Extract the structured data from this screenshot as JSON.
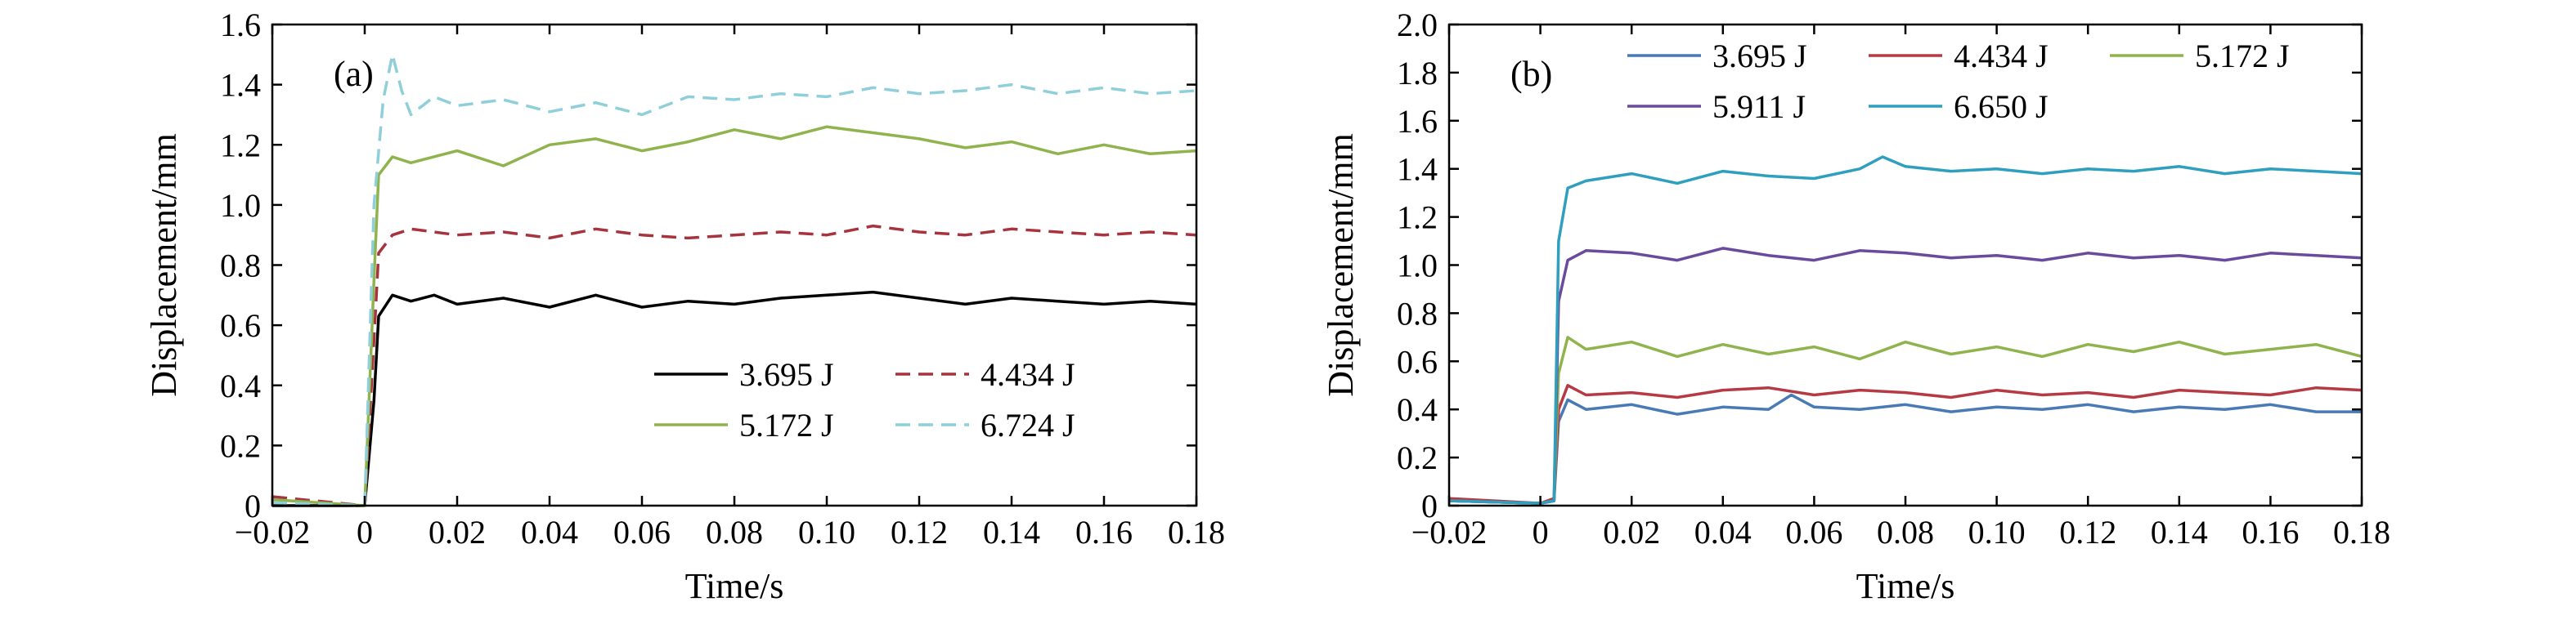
{
  "chart_data": [
    {
      "type": "line",
      "panel_label": "(a)",
      "xlabel": "Time/s",
      "ylabel": "Displacement/mm",
      "xlim": [
        -0.02,
        0.18
      ],
      "ylim": [
        0,
        1.6
      ],
      "xticks": [
        -0.02,
        0,
        0.02,
        0.04,
        0.06,
        0.08,
        0.1,
        0.12,
        0.14,
        0.16,
        0.18
      ],
      "xtick_labels": [
        "−0.02",
        "0",
        "0.02",
        "0.04",
        "0.06",
        "0.08",
        "0.10",
        "0.12",
        "0.14",
        "0.16",
        "0.18"
      ],
      "yticks": [
        0,
        0.2,
        0.4,
        0.6,
        0.8,
        1.0,
        1.2,
        1.4,
        1.6
      ],
      "ytick_labels": [
        "0",
        "0.2",
        "0.4",
        "0.6",
        "0.8",
        "1.0",
        "1.2",
        "1.4",
        "1.6"
      ],
      "grid": false,
      "legend_position": "bottom-right",
      "legend_columns": 2,
      "series": [
        {
          "name": "3.695 J",
          "color": "#000000",
          "dash": "solid",
          "x": [
            -0.02,
            0.0,
            0.002,
            0.003,
            0.006,
            0.01,
            0.015,
            0.02,
            0.03,
            0.04,
            0.05,
            0.06,
            0.07,
            0.08,
            0.09,
            0.1,
            0.11,
            0.12,
            0.13,
            0.14,
            0.15,
            0.16,
            0.17,
            0.18
          ],
          "y": [
            0.0,
            0.0,
            0.35,
            0.63,
            0.7,
            0.68,
            0.7,
            0.67,
            0.69,
            0.66,
            0.7,
            0.66,
            0.68,
            0.67,
            0.69,
            0.7,
            0.71,
            0.69,
            0.67,
            0.69,
            0.68,
            0.67,
            0.68,
            0.67
          ]
        },
        {
          "name": "4.434 J",
          "color": "#a6333d",
          "dash": "dashed",
          "x": [
            -0.02,
            0.0,
            0.002,
            0.003,
            0.006,
            0.01,
            0.02,
            0.03,
            0.04,
            0.05,
            0.06,
            0.07,
            0.08,
            0.09,
            0.1,
            0.11,
            0.12,
            0.13,
            0.14,
            0.15,
            0.16,
            0.17,
            0.18
          ],
          "y": [
            0.03,
            0.0,
            0.55,
            0.84,
            0.9,
            0.92,
            0.9,
            0.91,
            0.89,
            0.92,
            0.9,
            0.89,
            0.9,
            0.91,
            0.9,
            0.93,
            0.91,
            0.9,
            0.92,
            0.91,
            0.9,
            0.91,
            0.9
          ]
        },
        {
          "name": "5.172 J",
          "color": "#8fb34d",
          "dash": "solid",
          "x": [
            -0.02,
            0.0,
            0.002,
            0.003,
            0.006,
            0.01,
            0.02,
            0.03,
            0.04,
            0.05,
            0.06,
            0.07,
            0.08,
            0.09,
            0.1,
            0.11,
            0.12,
            0.13,
            0.14,
            0.15,
            0.16,
            0.17,
            0.18
          ],
          "y": [
            0.02,
            0.0,
            0.75,
            1.1,
            1.16,
            1.14,
            1.18,
            1.13,
            1.2,
            1.22,
            1.18,
            1.21,
            1.25,
            1.22,
            1.26,
            1.24,
            1.22,
            1.19,
            1.21,
            1.17,
            1.2,
            1.17,
            1.18
          ]
        },
        {
          "name": "6.724 J",
          "color": "#8fcfd9",
          "dash": "dashed",
          "x": [
            -0.02,
            0.0,
            0.002,
            0.004,
            0.006,
            0.008,
            0.01,
            0.015,
            0.02,
            0.03,
            0.04,
            0.05,
            0.06,
            0.07,
            0.08,
            0.09,
            0.1,
            0.11,
            0.12,
            0.13,
            0.14,
            0.15,
            0.16,
            0.17,
            0.18
          ],
          "y": [
            0.01,
            0.0,
            1.0,
            1.35,
            1.5,
            1.38,
            1.3,
            1.36,
            1.33,
            1.35,
            1.31,
            1.34,
            1.3,
            1.36,
            1.35,
            1.37,
            1.36,
            1.39,
            1.37,
            1.38,
            1.4,
            1.37,
            1.39,
            1.37,
            1.38
          ]
        }
      ]
    },
    {
      "type": "line",
      "panel_label": "(b)",
      "xlabel": "Time/s",
      "ylabel": "Displacement/mm",
      "xlim": [
        -0.02,
        0.18
      ],
      "ylim": [
        0,
        2.0
      ],
      "xticks": [
        -0.02,
        0,
        0.02,
        0.04,
        0.06,
        0.08,
        0.1,
        0.12,
        0.14,
        0.16,
        0.18
      ],
      "xtick_labels": [
        "−0.02",
        "0",
        "0.02",
        "0.04",
        "0.06",
        "0.08",
        "0.10",
        "0.12",
        "0.14",
        "0.16",
        "0.18"
      ],
      "yticks": [
        0,
        0.2,
        0.4,
        0.6,
        0.8,
        1.0,
        1.2,
        1.4,
        1.6,
        1.8,
        2.0
      ],
      "ytick_labels": [
        "0",
        "0.2",
        "0.4",
        "0.6",
        "0.8",
        "1.0",
        "1.2",
        "1.4",
        "1.6",
        "1.8",
        "2.0"
      ],
      "grid": false,
      "legend_position": "top",
      "legend_columns": 3,
      "series": [
        {
          "name": "3.695 J",
          "color": "#4a7ab5",
          "dash": "solid",
          "x": [
            -0.02,
            0.0,
            0.003,
            0.004,
            0.006,
            0.01,
            0.02,
            0.03,
            0.04,
            0.05,
            0.055,
            0.06,
            0.07,
            0.08,
            0.09,
            0.1,
            0.11,
            0.12,
            0.13,
            0.14,
            0.15,
            0.16,
            0.17,
            0.18
          ],
          "y": [
            0.02,
            0.01,
            0.02,
            0.35,
            0.44,
            0.4,
            0.42,
            0.38,
            0.41,
            0.4,
            0.46,
            0.41,
            0.4,
            0.42,
            0.39,
            0.41,
            0.4,
            0.42,
            0.39,
            0.41,
            0.4,
            0.42,
            0.39,
            0.39
          ]
        },
        {
          "name": "4.434 J",
          "color": "#b53a44",
          "dash": "solid",
          "x": [
            -0.02,
            0.0,
            0.003,
            0.004,
            0.006,
            0.01,
            0.02,
            0.03,
            0.04,
            0.05,
            0.06,
            0.07,
            0.08,
            0.09,
            0.1,
            0.11,
            0.12,
            0.13,
            0.14,
            0.15,
            0.16,
            0.17,
            0.18
          ],
          "y": [
            0.03,
            0.01,
            0.03,
            0.4,
            0.5,
            0.46,
            0.47,
            0.45,
            0.48,
            0.49,
            0.46,
            0.48,
            0.47,
            0.45,
            0.48,
            0.46,
            0.47,
            0.45,
            0.48,
            0.47,
            0.46,
            0.49,
            0.48
          ]
        },
        {
          "name": "5.172 J",
          "color": "#8fb34d",
          "dash": "solid",
          "x": [
            -0.02,
            0.0,
            0.003,
            0.004,
            0.006,
            0.01,
            0.02,
            0.03,
            0.04,
            0.05,
            0.06,
            0.07,
            0.08,
            0.09,
            0.1,
            0.11,
            0.12,
            0.13,
            0.14,
            0.15,
            0.16,
            0.17,
            0.18
          ],
          "y": [
            0.02,
            0.01,
            0.02,
            0.55,
            0.7,
            0.65,
            0.68,
            0.62,
            0.67,
            0.63,
            0.66,
            0.61,
            0.68,
            0.63,
            0.66,
            0.62,
            0.67,
            0.64,
            0.68,
            0.63,
            0.65,
            0.67,
            0.62
          ]
        },
        {
          "name": "5.911 J",
          "color": "#6a4a9c",
          "dash": "solid",
          "x": [
            -0.02,
            0.0,
            0.003,
            0.004,
            0.006,
            0.01,
            0.02,
            0.03,
            0.04,
            0.05,
            0.06,
            0.07,
            0.08,
            0.09,
            0.1,
            0.11,
            0.12,
            0.13,
            0.14,
            0.15,
            0.16,
            0.17,
            0.18
          ],
          "y": [
            0.02,
            0.01,
            0.02,
            0.85,
            1.02,
            1.06,
            1.05,
            1.02,
            1.07,
            1.04,
            1.02,
            1.06,
            1.05,
            1.03,
            1.04,
            1.02,
            1.05,
            1.03,
            1.04,
            1.02,
            1.05,
            1.04,
            1.03
          ]
        },
        {
          "name": "6.650 J",
          "color": "#2f9fbf",
          "dash": "solid",
          "x": [
            -0.02,
            0.0,
            0.003,
            0.004,
            0.006,
            0.01,
            0.02,
            0.03,
            0.04,
            0.05,
            0.06,
            0.07,
            0.075,
            0.08,
            0.09,
            0.1,
            0.11,
            0.12,
            0.13,
            0.14,
            0.15,
            0.16,
            0.17,
            0.18
          ],
          "y": [
            0.02,
            0.01,
            0.02,
            1.1,
            1.32,
            1.35,
            1.38,
            1.34,
            1.39,
            1.37,
            1.36,
            1.4,
            1.45,
            1.41,
            1.39,
            1.4,
            1.38,
            1.4,
            1.39,
            1.41,
            1.38,
            1.4,
            1.39,
            1.38
          ]
        }
      ]
    }
  ]
}
